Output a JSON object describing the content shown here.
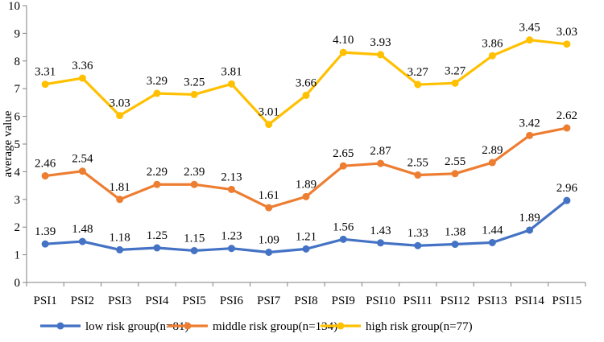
{
  "chart_data": {
    "type": "line",
    "title": "",
    "xlabel": "",
    "ylabel": "average value",
    "ylim": [
      0,
      10
    ],
    "yticks": [
      0,
      1,
      2,
      3,
      4,
      5,
      6,
      7,
      8,
      9,
      10
    ],
    "grid": false,
    "legend_position": "bottom",
    "categories": [
      "PSI1",
      "PSI2",
      "PSI3",
      "PSI4",
      "PSI5",
      "PSI6",
      "PSI7",
      "PSI8",
      "PSI9",
      "PSI10",
      "PSI11",
      "PSI12",
      "PSI13",
      "PSI14",
      "PSI15"
    ],
    "series": [
      {
        "name": "low risk group(n=81)",
        "color": "#4472C4",
        "values": [
          1.39,
          1.48,
          1.18,
          1.25,
          1.15,
          1.23,
          1.09,
          1.21,
          1.56,
          1.43,
          1.33,
          1.38,
          1.44,
          1.89,
          2.96
        ],
        "labels": [
          "1.39",
          "1.48",
          "1.18",
          "1.25",
          "1.15",
          "1.23",
          "1.09",
          "1.21",
          "1.56",
          "1.43",
          "1.33",
          "1.38",
          "1.44",
          "1.89",
          "2.96"
        ]
      },
      {
        "name": "middle risk group(n=134)",
        "color": "#ED7D31",
        "values": [
          3.85,
          4.02,
          3.0,
          3.54,
          3.54,
          3.36,
          2.7,
          3.1,
          4.21,
          4.3,
          3.88,
          3.93,
          4.33,
          5.31,
          5.58
        ],
        "labels": [
          "2.46",
          "2.54",
          "1.81",
          "2.29",
          "2.39",
          "2.13",
          "1.61",
          "1.89",
          "2.65",
          "2.87",
          "2.55",
          "2.55",
          "2.89",
          "3.42",
          "2.62"
        ]
      },
      {
        "name": "high risk group(n=77)",
        "color": "#FFC000",
        "values": [
          7.16,
          7.38,
          6.03,
          6.83,
          6.79,
          7.17,
          5.71,
          6.76,
          8.31,
          8.23,
          7.15,
          7.2,
          8.19,
          8.76,
          8.61
        ],
        "labels": [
          "3.31",
          "3.36",
          "3.03",
          "3.29",
          "3.25",
          "3.81",
          "3.01",
          "3.66",
          "4.10",
          "3.93",
          "3.27",
          "3.27",
          "3.86",
          "3.45",
          "3.03"
        ]
      }
    ]
  }
}
